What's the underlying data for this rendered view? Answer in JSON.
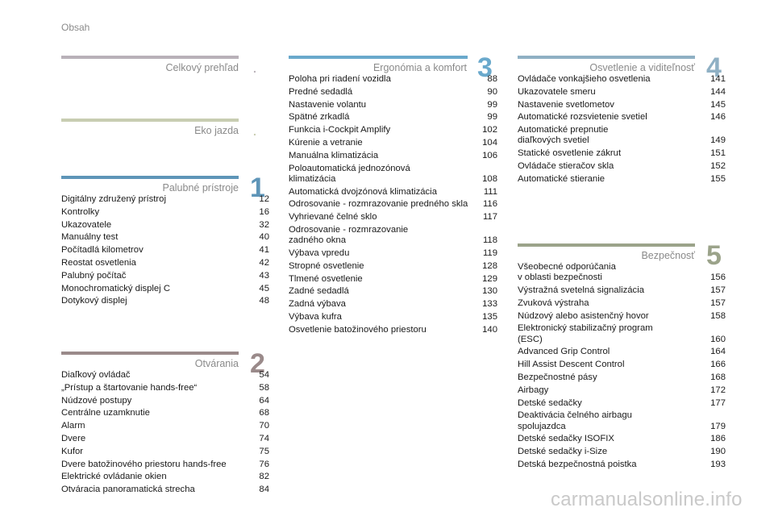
{
  "page_header": "Obsah",
  "colors": {
    "overview": "#b9b1b9",
    "eco": "#c8cdb2",
    "instruments": "#5e95b8",
    "opening": "#9a8a8a",
    "ergonomics": "#6aa9cc",
    "lighting": "#8fb0c4",
    "safety": "#9ba38a"
  },
  "sections": {
    "overview": {
      "title": "Celkový prehľad",
      "marker": "."
    },
    "eco": {
      "title": "Eko jazda",
      "marker": "."
    },
    "instruments": {
      "title": "Palubné prístroje",
      "number": "1",
      "items": [
        {
          "title": "Digitálny združený prístroj",
          "page": "12"
        },
        {
          "title": "Kontrolky",
          "page": "16"
        },
        {
          "title": "Ukazovatele",
          "page": "32"
        },
        {
          "title": "Manuálny test",
          "page": "40"
        },
        {
          "title": "Počítadlá kilometrov",
          "page": "41"
        },
        {
          "title": "Reostat osvetlenia",
          "page": "42"
        },
        {
          "title": "Palubný počítač",
          "page": "43"
        },
        {
          "title": "Monochromatický displej C",
          "page": "45"
        },
        {
          "title": "Dotykový displej",
          "page": "48"
        }
      ]
    },
    "opening": {
      "title": "Otvárania",
      "number": "2",
      "items": [
        {
          "title": "Diaľkový ovládač",
          "page": "54"
        },
        {
          "title": "„Prístup a štartovanie hands-free“",
          "page": "58"
        },
        {
          "title": "Núdzové postupy",
          "page": "64"
        },
        {
          "title": "Centrálne uzamknutie",
          "page": "68"
        },
        {
          "title": "Alarm",
          "page": "70"
        },
        {
          "title": "Dvere",
          "page": "74"
        },
        {
          "title": "Kufor",
          "page": "75"
        },
        {
          "title": "Dvere batožinového priestoru hands-free",
          "page": "76"
        },
        {
          "title": "Elektrické ovládanie okien",
          "page": "82"
        },
        {
          "title": "Otváracia panoramatická strecha",
          "page": "84"
        }
      ]
    },
    "ergonomics": {
      "title": "Ergonómia a komfort",
      "number": "3",
      "items": [
        {
          "title": "Poloha pri riadení vozidla",
          "page": "88"
        },
        {
          "title": "Predné sedadlá",
          "page": "90"
        },
        {
          "title": "Nastavenie volantu",
          "page": "99"
        },
        {
          "title": "Spätné zrkadlá",
          "page": "99"
        },
        {
          "title": "Funkcia i-Cockpit Amplify",
          "page": "102"
        },
        {
          "title": "Kúrenie a vetranie",
          "page": "104"
        },
        {
          "title": "Manuálna klimatizácia",
          "page": "106"
        },
        {
          "title": "Poloautomatická jednozónová\n    klimatizácia",
          "page": "108"
        },
        {
          "title": "Automatická dvojzónová klimatizácia",
          "page": "111"
        },
        {
          "title": "Odrosovanie - rozmrazovanie predného skla",
          "page": "116"
        },
        {
          "title": "Vyhrievané čelné sklo",
          "page": "117"
        },
        {
          "title": "Odrosovanie - rozmrazovanie\n    zadného okna",
          "page": "118"
        },
        {
          "title": "Výbava vpredu",
          "page": "119"
        },
        {
          "title": "Stropné osvetlenie",
          "page": "128"
        },
        {
          "title": "Tlmené osvetlenie",
          "page": "129"
        },
        {
          "title": "Zadné sedadlá",
          "page": "130"
        },
        {
          "title": "Zadná výbava",
          "page": "133"
        },
        {
          "title": "Výbava kufra",
          "page": "135"
        },
        {
          "title": "Osvetlenie batožinového priestoru",
          "page": "140"
        }
      ]
    },
    "lighting": {
      "title": "Osvetlenie a viditeľnosť",
      "number": "4",
      "items": [
        {
          "title": "Ovládače vonkajšieho osvetlenia",
          "page": "141"
        },
        {
          "title": "Ukazovatele smeru",
          "page": "144"
        },
        {
          "title": "Nastavenie svetlometov",
          "page": "145"
        },
        {
          "title": "Automatické rozsvietenie svetiel",
          "page": "146"
        },
        {
          "title": "Automatické prepnutie\n    diaľkových svetiel",
          "page": "149"
        },
        {
          "title": "Statické osvetlenie zákrut",
          "page": "151"
        },
        {
          "title": "Ovládače stieračov skla",
          "page": "152"
        },
        {
          "title": "Automatické stieranie",
          "page": "155"
        }
      ]
    },
    "safety": {
      "title": "Bezpečnosť",
      "number": "5",
      "items": [
        {
          "title": "Všeobecné odporúčania\n    v oblasti bezpečnosti",
          "page": "156"
        },
        {
          "title": "Výstražná svetelná signalizácia",
          "page": "157"
        },
        {
          "title": "Zvuková výstraha",
          "page": "157"
        },
        {
          "title": "Núdzový alebo asistenčný hovor",
          "page": "158"
        },
        {
          "title": "Elektronický stabilizačný program\n    (ESC)",
          "page": "160"
        },
        {
          "title": "Advanced Grip Control",
          "page": "164"
        },
        {
          "title": "Hill Assist Descent Control",
          "page": "166"
        },
        {
          "title": "Bezpečnostné pásy",
          "page": "168"
        },
        {
          "title": "Airbagy",
          "page": "172"
        },
        {
          "title": "Detské sedačky",
          "page": "177"
        },
        {
          "title": "Deaktivácia čelného airbagu\n    spolujazdca",
          "page": "179"
        },
        {
          "title": "Detské sedačky ISOFIX",
          "page": "186"
        },
        {
          "title": "Detské sedačky i-Size",
          "page": "190"
        },
        {
          "title": "Detská bezpečnostná poistka",
          "page": "193"
        }
      ]
    }
  },
  "watermark": "carmanualsonline.info"
}
